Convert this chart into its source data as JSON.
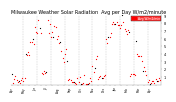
{
  "title": "Milwaukee Weather Solar Radiation  Avg per Day W/m2/minute",
  "title_fontsize": 3.5,
  "bg_color": "#ffffff",
  "plot_bg": "#ffffff",
  "red_color": "#ff0000",
  "black_color": "#000000",
  "grid_color": "#aaaaaa",
  "ylim": [
    0,
    9
  ],
  "ytick_labels": [
    "1",
    "2",
    "3",
    "4",
    "5",
    "6",
    "7",
    "8",
    "9"
  ],
  "ytick_vals": [
    1,
    2,
    3,
    4,
    5,
    6,
    7,
    8,
    9
  ],
  "legend_label": "Avg W/m2/min",
  "x_label_fontsize": 2.0,
  "y_label_fontsize": 2.5,
  "dot_size": 0.8,
  "num_points": 130
}
